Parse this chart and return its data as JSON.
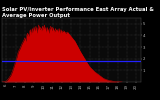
{
  "title": "Solar PV/Inverter Performance East Array Actual & Average Power Output",
  "bg_color": "#000000",
  "plot_bg_color": "#0a0a0a",
  "grid_color": "#888888",
  "fill_color": "#cc0000",
  "line_color": "#dd0000",
  "avg_line_color": "#2222ff",
  "avg_value": 1.8,
  "ylim": [
    0,
    5.5
  ],
  "yticks": [
    1,
    2,
    3,
    4,
    5
  ],
  "xlim": [
    5.5,
    20.5
  ],
  "x_hours": [
    6,
    7,
    8,
    9,
    10,
    11,
    12,
    13,
    14,
    15,
    16,
    17,
    18,
    19,
    20
  ],
  "x_labels": [
    "6",
    "7",
    "8",
    "9",
    "10",
    "11",
    "12",
    "13",
    "14",
    "15",
    "16",
    "17",
    "18",
    "19",
    "20"
  ],
  "power_x": [
    5.5,
    5.8,
    6.0,
    6.2,
    6.5,
    6.7,
    6.9,
    7.1,
    7.3,
    7.5,
    7.7,
    7.9,
    8.0,
    8.1,
    8.2,
    8.3,
    8.4,
    8.5,
    8.6,
    8.7,
    8.8,
    8.9,
    9.0,
    9.1,
    9.2,
    9.3,
    9.4,
    9.5,
    9.6,
    9.7,
    9.8,
    9.9,
    10.0,
    10.1,
    10.2,
    10.3,
    10.4,
    10.5,
    10.6,
    10.7,
    10.8,
    10.9,
    11.0,
    11.1,
    11.2,
    11.3,
    11.4,
    11.5,
    11.6,
    11.7,
    11.8,
    11.9,
    12.0,
    12.2,
    12.4,
    12.6,
    12.8,
    13.0,
    13.2,
    13.4,
    13.6,
    13.8,
    14.0,
    14.3,
    14.6,
    15.0,
    15.5,
    16.0,
    16.5,
    17.0,
    17.5,
    18.0,
    18.3,
    18.5
  ],
  "power_y": [
    0.0,
    0.02,
    0.08,
    0.25,
    0.6,
    1.0,
    1.5,
    2.0,
    2.6,
    2.9,
    3.3,
    3.6,
    3.8,
    3.5,
    4.0,
    4.2,
    3.9,
    4.3,
    4.5,
    4.1,
    4.6,
    4.3,
    4.7,
    4.4,
    4.8,
    4.2,
    4.6,
    4.9,
    4.5,
    4.7,
    4.4,
    4.8,
    4.5,
    4.9,
    4.6,
    4.3,
    4.7,
    4.5,
    4.2,
    4.6,
    4.8,
    4.4,
    4.7,
    4.5,
    4.3,
    4.6,
    4.4,
    4.5,
    4.3,
    4.6,
    4.2,
    4.5,
    4.3,
    4.4,
    4.2,
    4.3,
    4.1,
    3.9,
    3.7,
    3.5,
    3.2,
    2.9,
    2.6,
    2.2,
    1.8,
    1.3,
    0.9,
    0.6,
    0.3,
    0.15,
    0.07,
    0.02,
    0.01,
    0.0
  ],
  "title_color": "#ffffff",
  "title_fontsize": 3.8,
  "tick_color": "#bbbbbb",
  "tick_fontsize": 2.8
}
